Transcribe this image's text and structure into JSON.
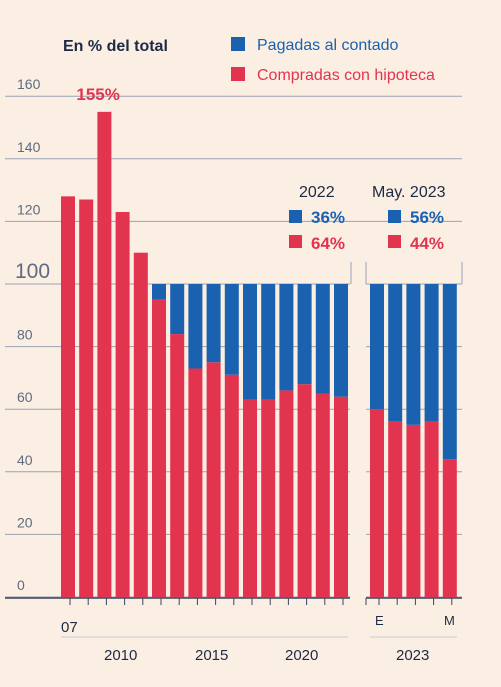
{
  "chart_data": {
    "type": "bar",
    "stacked": true,
    "unit_label": "En % del total",
    "colors": {
      "contado": "#1a62b0",
      "hipoteca": "#e3344f",
      "ink": "#1d2a44",
      "background": "#fbeee3"
    },
    "series": [
      {
        "name": "Pagadas al contado",
        "color": "#1a62b0",
        "values": [
          0,
          0,
          0,
          0,
          0,
          5,
          16,
          27,
          25,
          29,
          37,
          37,
          34,
          32,
          35,
          36,
          40,
          44,
          45,
          44,
          56
        ]
      },
      {
        "name": "Compradas con hipoteca",
        "color": "#e3344f",
        "values": [
          128,
          127,
          155,
          123,
          110,
          95,
          84,
          73,
          75,
          71,
          63,
          63,
          66,
          68,
          65,
          64,
          60,
          56,
          55,
          56,
          44
        ]
      }
    ],
    "panels": [
      {
        "bars": 16,
        "title": "2022",
        "contado_label": "36%",
        "hipoteca_label": "64%"
      },
      {
        "bars": 5,
        "title": "May. 2023",
        "contado_label": "56%",
        "hipoteca_label": "44%"
      }
    ],
    "peak_label": "155%",
    "y_ticks": [
      0,
      20,
      40,
      60,
      80,
      100,
      120,
      140,
      160
    ],
    "ylim": [
      0,
      165
    ],
    "x_tick_labels": [
      "07",
      "2010",
      "2015",
      "2020",
      "E",
      "M",
      "2023"
    ],
    "grid": true,
    "legend_position": "top-right"
  }
}
